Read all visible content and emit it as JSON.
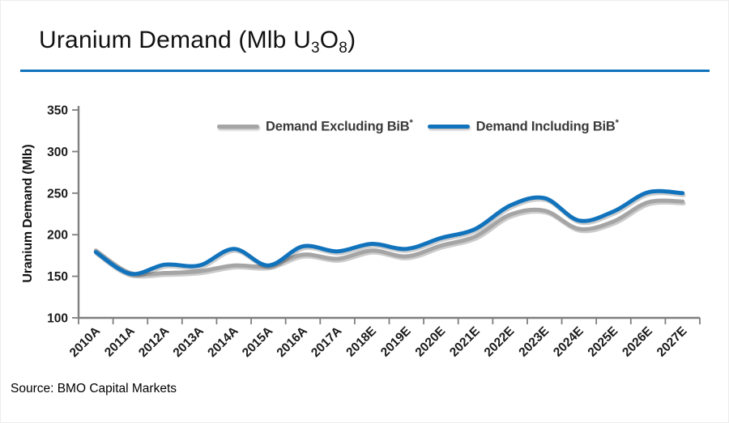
{
  "title": {
    "full": "Uranium Demand (Mlb U3O8)",
    "prefix": "Uranium Demand (Mlb U",
    "sub1": "3",
    "mid": "O",
    "sub2": "8",
    "suffix": ")"
  },
  "accent_color": "#1173BC",
  "source": {
    "text": "Source: BMO Capital Markets"
  },
  "chart_data": {
    "type": "line",
    "title": "Uranium Demand (Mlb U3O8)",
    "ylabel": "Uranium Demand (Mlb)",
    "xlabel": "",
    "ylim": [
      100,
      350
    ],
    "yticks": [
      100,
      150,
      200,
      250,
      300,
      350
    ],
    "grid": false,
    "smooth": true,
    "legend_position": "top-center-inside",
    "categories": [
      "2010A",
      "2011A",
      "2012A",
      "2013A",
      "2014A",
      "2015A",
      "2016A",
      "2017A",
      "2018E",
      "2019E",
      "2020E",
      "2021E",
      "2022E",
      "2023E",
      "2024E",
      "2025E",
      "2026E",
      "2027E"
    ],
    "series": [
      {
        "name": "Demand Excluding BiB*",
        "label": "Demand Excluding BiB",
        "sup": "*",
        "color": "#A5A5A5",
        "values": [
          181,
          154,
          154,
          156,
          163,
          162,
          176,
          171,
          181,
          174,
          187,
          198,
          224,
          229,
          207,
          216,
          239,
          240
        ]
      },
      {
        "name": "Demand Including BiB*",
        "label": "Demand Including BiB",
        "sup": "*",
        "color": "#1173BC",
        "values": [
          179,
          153,
          164,
          163,
          183,
          163,
          186,
          180,
          189,
          183,
          196,
          207,
          235,
          244,
          217,
          228,
          251,
          250
        ]
      }
    ]
  }
}
